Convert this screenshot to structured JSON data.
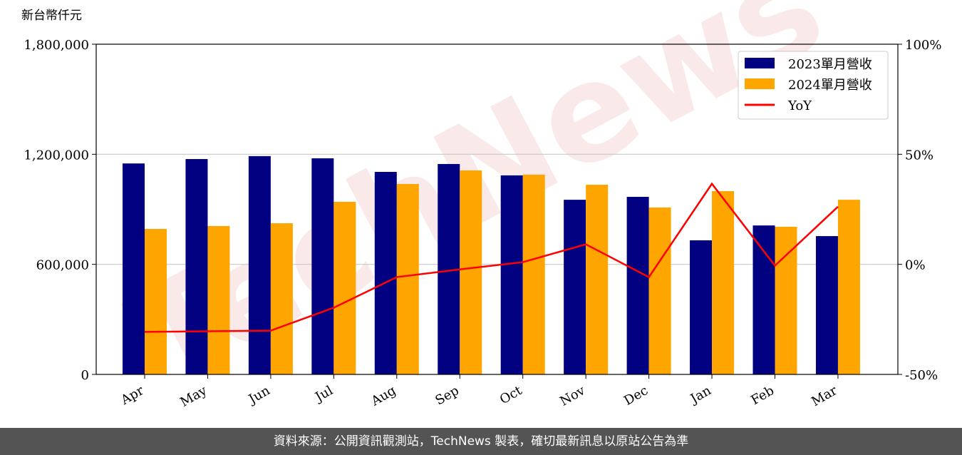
{
  "chart_data": {
    "type": "bar",
    "ylabel": "新台幣仟元",
    "watermark": "TechNews",
    "categories": [
      "Apr",
      "May",
      "Jun",
      "Jul",
      "Aug",
      "Sep",
      "Oct",
      "Nov",
      "Dec",
      "Jan",
      "Feb",
      "Mar"
    ],
    "series": [
      {
        "name": "2023單月營收",
        "color": "#000080",
        "values": [
          1150000,
          1174000,
          1190000,
          1178000,
          1104000,
          1147000,
          1085000,
          952000,
          968000,
          731000,
          812000,
          754000
        ]
      },
      {
        "name": "2024單月營收",
        "color": "#ffa500",
        "values": [
          793000,
          809000,
          824000,
          941000,
          1038000,
          1112000,
          1089000,
          1034000,
          910000,
          999000,
          805000,
          952000
        ]
      },
      {
        "name": "YoY",
        "color": "#ff0000",
        "type": "line",
        "axis": "y2",
        "values": [
          -30.7,
          -30.4,
          -30.1,
          -19.7,
          -5.8,
          -2.3,
          1.0,
          9.1,
          -5.8,
          36.6,
          -0.6,
          26.2
        ]
      }
    ],
    "ylim": [
      0,
      1800000
    ],
    "yticks": [
      {
        "value": 0,
        "label": "0"
      },
      {
        "value": 600000,
        "label": "600,000"
      },
      {
        "value": 1200000,
        "label": "1,200,000"
      },
      {
        "value": 1800000,
        "label": "1,800,000"
      }
    ],
    "y2lim": [
      -50,
      100
    ],
    "y2ticks": [
      {
        "value": -50,
        "label": "-50%"
      },
      {
        "value": 0,
        "label": "0%"
      },
      {
        "value": 50,
        "label": "50%"
      },
      {
        "value": 100,
        "label": "100%"
      }
    ],
    "grid": true,
    "legend": "upper right"
  },
  "footer": "資料來源：公開資訊觀測站，TechNews 製表，確切最新訊息以原站公告為準"
}
